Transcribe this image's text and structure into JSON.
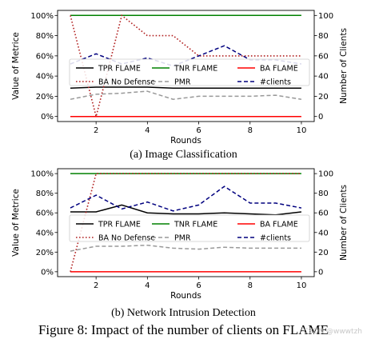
{
  "chart_data": [
    {
      "type": "line",
      "subtitle": "(a) Image Classification",
      "xlabel": "Rounds",
      "ylabel": "Value of Metrice",
      "y2label": "Number of Clients",
      "x": [
        1,
        2,
        3,
        4,
        5,
        6,
        7,
        8,
        9,
        10
      ],
      "xlim": [
        0.5,
        10.5
      ],
      "xticks": [
        2,
        4,
        6,
        8,
        10
      ],
      "ylim": [
        -5,
        105
      ],
      "yticks": [
        0,
        20,
        40,
        60,
        80,
        100
      ],
      "ytick_labels": [
        "0%",
        "20%",
        "40%",
        "60%",
        "80%",
        "100%"
      ],
      "y2lim": [
        -5,
        105
      ],
      "y2ticks": [
        0,
        20,
        40,
        60,
        80,
        100
      ],
      "legend": "inside-center, 3 columns",
      "series": [
        {
          "name": "TPR FLAME",
          "axis": "left",
          "color": "#000000",
          "dash": "solid",
          "values": [
            28,
            29,
            29,
            29,
            28,
            28,
            28,
            28,
            28,
            28
          ]
        },
        {
          "name": "TNR FLAME",
          "axis": "left",
          "color": "#008000",
          "dash": "solid",
          "values": [
            100,
            100,
            100,
            100,
            100,
            100,
            100,
            100,
            100,
            100
          ]
        },
        {
          "name": "BA FLAME",
          "axis": "left",
          "color": "#ff0000",
          "dash": "solid",
          "values": [
            0,
            0,
            0,
            0,
            0,
            0,
            0,
            0,
            0,
            0
          ]
        },
        {
          "name": "BA No Defense",
          "axis": "left",
          "color": "#b22222",
          "dash": "dotted",
          "values": [
            100,
            0,
            100,
            80,
            80,
            60,
            60,
            60,
            60,
            60
          ]
        },
        {
          "name": "PMR",
          "axis": "left",
          "color": "#999999",
          "dash": "dashed",
          "values": [
            17,
            22,
            23,
            25,
            17,
            20,
            20,
            20,
            21,
            17
          ]
        },
        {
          "name": "#clients",
          "axis": "right",
          "color": "#00007f",
          "dash": "dashed",
          "values": [
            52,
            62,
            52,
            58,
            50,
            60,
            70,
            56,
            56,
            52
          ]
        }
      ]
    },
    {
      "type": "line",
      "subtitle": "(b) Network Intrusion Detection",
      "xlabel": "Rounds",
      "ylabel": "Value of Metrice",
      "y2label": "Number of Clients",
      "x": [
        1,
        2,
        3,
        4,
        5,
        6,
        7,
        8,
        9,
        10
      ],
      "xlim": [
        0.5,
        10.5
      ],
      "xticks": [
        2,
        4,
        6,
        8,
        10
      ],
      "ylim": [
        -5,
        105
      ],
      "yticks": [
        0,
        20,
        40,
        60,
        80,
        100
      ],
      "ytick_labels": [
        "0%",
        "20%",
        "40%",
        "60%",
        "80%",
        "100%"
      ],
      "y2lim": [
        -5,
        105
      ],
      "y2ticks": [
        0,
        20,
        40,
        60,
        80,
        100
      ],
      "legend": "inside-center, 3 columns",
      "series": [
        {
          "name": "TPR FLAME",
          "axis": "left",
          "color": "#000000",
          "dash": "solid",
          "values": [
            61,
            61,
            68,
            60,
            59,
            59,
            60,
            59,
            58,
            61
          ]
        },
        {
          "name": "TNR FLAME",
          "axis": "left",
          "color": "#008000",
          "dash": "solid",
          "values": [
            100,
            100,
            100,
            100,
            100,
            100,
            100,
            100,
            100,
            100
          ]
        },
        {
          "name": "BA FLAME",
          "axis": "left",
          "color": "#ff0000",
          "dash": "solid",
          "values": [
            0,
            0,
            0,
            0,
            0,
            0,
            0,
            0,
            0,
            0
          ]
        },
        {
          "name": "BA No Defense",
          "axis": "left",
          "color": "#b22222",
          "dash": "dotted",
          "values": [
            0,
            100,
            100,
            100,
            100,
            100,
            100,
            100,
            100,
            100
          ]
        },
        {
          "name": "PMR",
          "axis": "left",
          "color": "#999999",
          "dash": "dashed",
          "values": [
            21,
            26,
            26,
            27,
            24,
            23,
            25,
            24,
            24,
            24
          ]
        },
        {
          "name": "#clients",
          "axis": "right",
          "color": "#00007f",
          "dash": "dashed",
          "values": [
            65,
            78,
            64,
            71,
            62,
            68,
            87,
            70,
            70,
            65
          ]
        }
      ]
    }
  ],
  "figure_caption": "Figure 8: Impact of the number of clients on FLAME",
  "watermark": "CSDN @wwwtzh"
}
